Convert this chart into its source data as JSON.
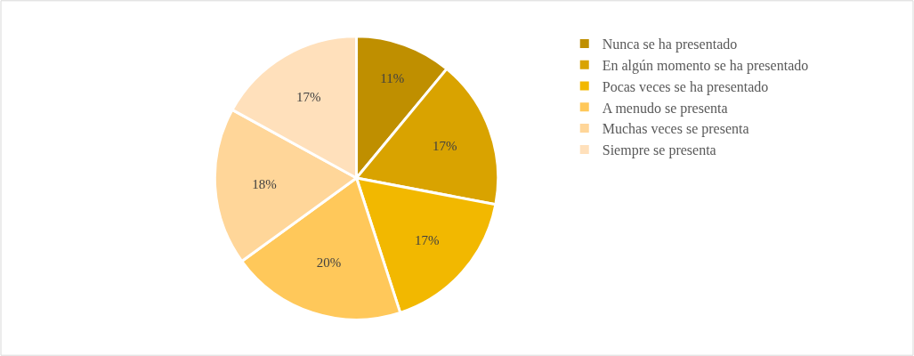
{
  "chart_data": {
    "type": "pie",
    "categories": [
      "Nunca se ha presentado",
      "En algún momento se ha presentado",
      "Pocas veces se ha presentado",
      "A menudo se presenta",
      "Muchas veces se presenta",
      "Siempre se presenta"
    ],
    "values": [
      11,
      17,
      17,
      20,
      18,
      17
    ],
    "value_labels": [
      "11%",
      "17%",
      "17%",
      "20%",
      "18%",
      "17%"
    ],
    "colors": [
      "#bf8f00",
      "#d9a300",
      "#f2b800",
      "#ffc85a",
      "#ffd699",
      "#ffe0bb"
    ],
    "legend": "right"
  }
}
